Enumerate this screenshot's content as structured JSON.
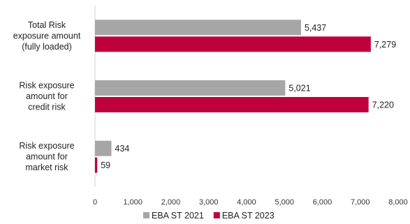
{
  "chart_data": {
    "type": "bar",
    "orientation": "horizontal",
    "categories": [
      [
        "Total Risk",
        "exposure amount",
        "(fully loaded)"
      ],
      [
        "Risk exposure",
        "amount for",
        "credit risk"
      ],
      [
        "Risk exposure",
        "amount for",
        "market risk"
      ]
    ],
    "series": [
      {
        "name": "EBA ST 2021",
        "color": "#a6a6a6",
        "values": [
          5437,
          5021,
          434
        ],
        "labels": [
          "5,437",
          "5,021",
          "434"
        ]
      },
      {
        "name": "EBA ST 2023",
        "color": "#c0003c",
        "values": [
          7279,
          7220,
          59
        ],
        "labels": [
          "7,279",
          "7,220",
          "59"
        ]
      }
    ],
    "xlim": [
      0,
      8000
    ],
    "x_ticks": [
      0,
      1000,
      2000,
      3000,
      4000,
      5000,
      6000,
      7000,
      8000
    ],
    "x_tick_labels": [
      "0",
      "1,000",
      "2,000",
      "3,000",
      "4,000",
      "5,000",
      "6,000",
      "7,000",
      "8,000"
    ],
    "grid": false,
    "legend_position": "bottom"
  }
}
